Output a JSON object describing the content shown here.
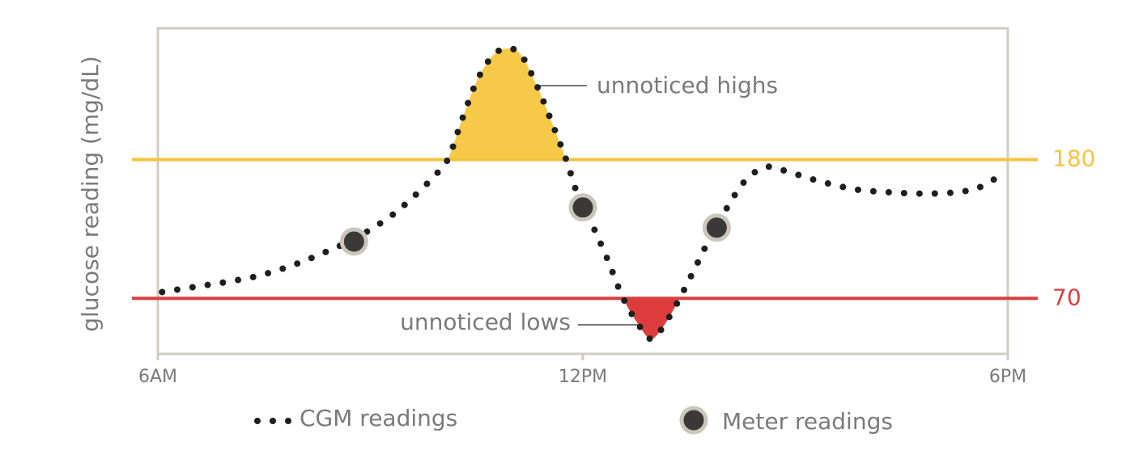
{
  "chart_data": {
    "type": "line",
    "y_label": "glucose reading (mg/dL)",
    "xlim": [
      6,
      18
    ],
    "xticks": [
      {
        "value": 6,
        "label": "6AM"
      },
      {
        "value": 12,
        "label": "12PM"
      },
      {
        "value": 18,
        "label": "6PM"
      }
    ],
    "ylim": [
      26,
      284
    ],
    "thresholds": [
      {
        "value": 180,
        "color": "#f5c43f",
        "fill": "#f7c948"
      },
      {
        "value": 70,
        "color": "#dc3f3f",
        "fill": "#dd3c3c"
      }
    ],
    "series": [
      {
        "name": "CGM readings",
        "type": "line",
        "color": "#1e1e1e",
        "x": [
          6.06,
          6.51,
          6.97,
          7.43,
          7.89,
          8.34,
          8.8,
          9.26,
          9.6,
          9.94,
          10.11,
          10.29,
          10.51,
          10.74,
          10.95,
          11.14,
          11.37,
          11.6,
          11.77,
          11.94,
          12.11,
          12.34,
          12.57,
          12.8,
          12.95,
          13.09,
          13.31,
          13.54,
          13.77,
          14.06,
          14.29,
          14.57,
          14.86,
          15.2,
          15.54,
          15.89,
          16.34,
          16.8,
          17.26,
          17.6,
          17.94
        ],
        "values": [
          75,
          79,
          83,
          88,
          96,
          106,
          118,
          134,
          150,
          169,
          182,
          211,
          243,
          263,
          268,
          262,
          236,
          204,
          179,
          150,
          131,
          102,
          70,
          48,
          38,
          44,
          64,
          89,
          115,
          144,
          163,
          174,
          171,
          165,
          160,
          156,
          154,
          153,
          154,
          158,
          169
        ]
      },
      {
        "name": "Meter readings",
        "type": "scatter",
        "color": "#3a3938",
        "ring": "#cbc6bd",
        "x": [
          8.77,
          12.0,
          13.89
        ],
        "values": [
          115,
          142,
          126
        ]
      }
    ],
    "annotations": [
      {
        "text": "unnoticed highs"
      },
      {
        "text": "unnoticed lows"
      }
    ]
  }
}
